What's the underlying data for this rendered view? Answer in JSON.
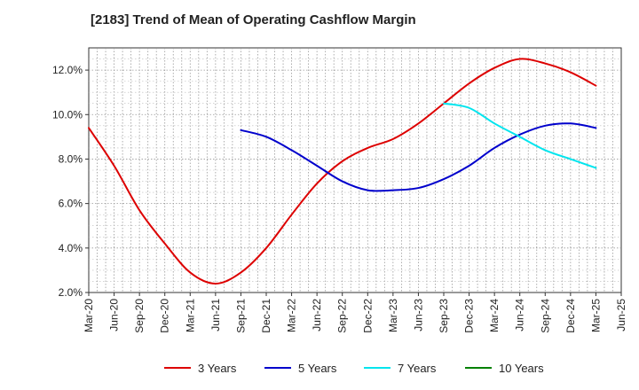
{
  "chart_data": {
    "type": "line",
    "title": "[2183]  Trend of Mean of Operating Cashflow Margin",
    "xlabel": "",
    "ylabel": "",
    "x_ticks": [
      "Mar-20",
      "Jun-20",
      "Sep-20",
      "Dec-20",
      "Mar-21",
      "Jun-21",
      "Sep-21",
      "Dec-21",
      "Mar-22",
      "Jun-22",
      "Sep-22",
      "Dec-22",
      "Mar-23",
      "Jun-23",
      "Sep-23",
      "Dec-23",
      "Mar-24",
      "Jun-24",
      "Sep-24",
      "Dec-24",
      "Mar-25",
      "Jun-25"
    ],
    "y_ticks": [
      "2.0%",
      "4.0%",
      "6.0%",
      "8.0%",
      "10.0%",
      "12.0%"
    ],
    "ylim": [
      2.0,
      13.0
    ],
    "grid": true,
    "legend_position": "bottom",
    "series": [
      {
        "name": "3 Years",
        "color": "#dd0000",
        "x": [
          "Mar-20",
          "Jun-20",
          "Sep-20",
          "Dec-20",
          "Mar-21",
          "Jun-21",
          "Sep-21",
          "Dec-21",
          "Mar-22",
          "Jun-22",
          "Sep-22",
          "Dec-22",
          "Mar-23",
          "Jun-23",
          "Sep-23",
          "Dec-23",
          "Mar-24",
          "Jun-24",
          "Sep-24",
          "Dec-24",
          "Mar-25"
        ],
        "values": [
          9.4,
          7.7,
          5.7,
          4.2,
          2.9,
          2.4,
          2.9,
          4.0,
          5.5,
          6.9,
          7.9,
          8.5,
          8.9,
          9.6,
          10.5,
          11.4,
          12.1,
          12.5,
          12.3,
          11.9,
          11.3
        ]
      },
      {
        "name": "5 Years",
        "color": "#0000cc",
        "x": [
          "Sep-21",
          "Dec-21",
          "Mar-22",
          "Jun-22",
          "Sep-22",
          "Dec-22",
          "Mar-23",
          "Jun-23",
          "Sep-23",
          "Dec-23",
          "Mar-24",
          "Jun-24",
          "Sep-24",
          "Dec-24",
          "Mar-25"
        ],
        "values": [
          9.3,
          9.0,
          8.4,
          7.7,
          7.0,
          6.6,
          6.6,
          6.7,
          7.1,
          7.7,
          8.5,
          9.1,
          9.5,
          9.6,
          9.4
        ]
      },
      {
        "name": "7 Years",
        "color": "#00e5ee",
        "x": [
          "Sep-23",
          "Dec-23",
          "Mar-24",
          "Jun-24",
          "Sep-24",
          "Dec-24",
          "Mar-25"
        ],
        "values": [
          10.5,
          10.3,
          9.6,
          9.0,
          8.4,
          8.0,
          7.6
        ]
      },
      {
        "name": "10 Years",
        "color": "#008000",
        "x": [],
        "values": []
      }
    ]
  }
}
